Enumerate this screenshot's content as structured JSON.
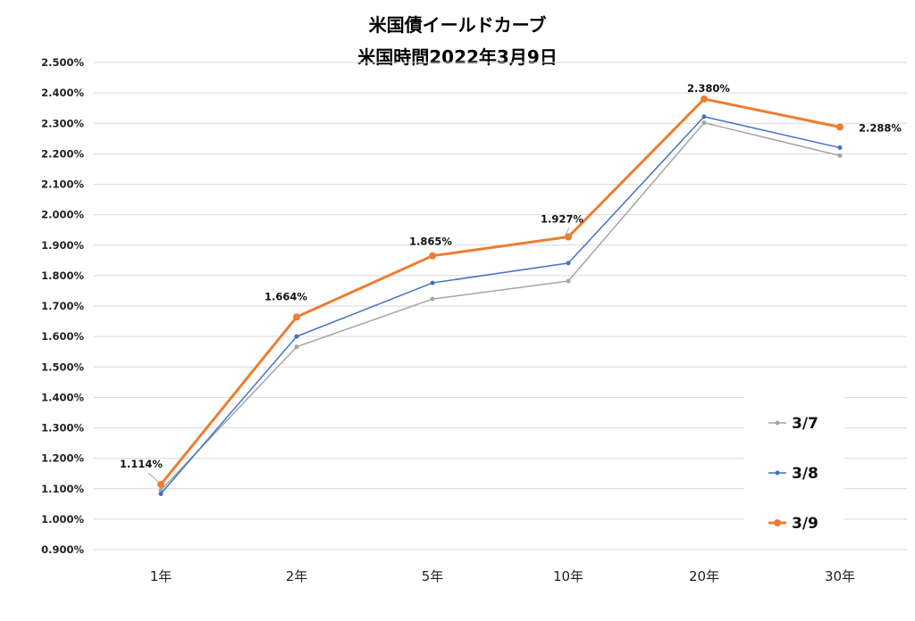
{
  "chart_data": {
    "type": "line",
    "title": "米国債イールドカーブ",
    "subtitle": "米国時間2022年3月9日",
    "categories": [
      "1年",
      "2年",
      "5年",
      "10年",
      "20年",
      "30年"
    ],
    "ylim": [
      0.9,
      2.5
    ],
    "yticks": [
      "0.900%",
      "1.000%",
      "1.100%",
      "1.200%",
      "1.300%",
      "1.400%",
      "1.500%",
      "1.600%",
      "1.700%",
      "1.800%",
      "1.900%",
      "2.000%",
      "2.100%",
      "2.200%",
      "2.300%",
      "2.400%",
      "2.500%"
    ],
    "grid": true,
    "legend": "bottom-right",
    "series": [
      {
        "name": "3/7",
        "color": "#a5a5a5",
        "values": [
          1.095,
          1.566,
          1.723,
          1.782,
          2.302,
          2.194
        ]
      },
      {
        "name": "3/8",
        "color": "#4472c4",
        "values": [
          1.083,
          1.6,
          1.776,
          1.841,
          2.322,
          2.22
        ]
      },
      {
        "name": "3/9",
        "color": "#ed7d31",
        "values": [
          1.114,
          1.664,
          1.865,
          1.927,
          2.38,
          2.288
        ],
        "data_labels": [
          "1.114%",
          "1.664%",
          "1.865%",
          "1.927%",
          "2.380%",
          "2.288%"
        ]
      }
    ]
  }
}
